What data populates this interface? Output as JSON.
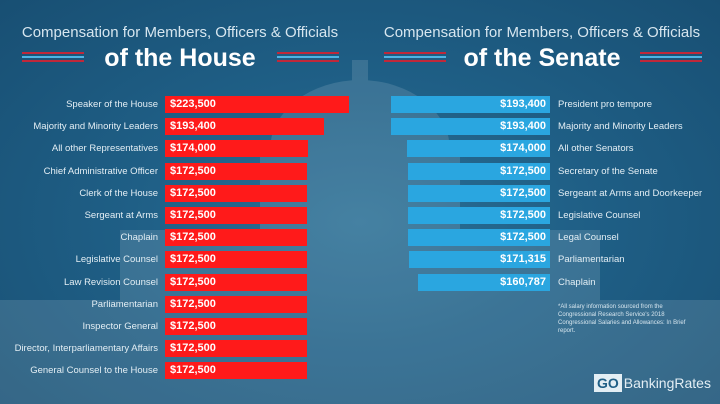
{
  "house": {
    "subtitle": "Compensation for Members, Officers & Officials",
    "title": "of the House"
  },
  "senate": {
    "subtitle": "Compensation for Members, Officers & Officials",
    "title": "of the Senate"
  },
  "footnote": "*All salary information sourced from the Congressional Research Service's 2018 Congressional Salaries and Allowances: In Brief report.",
  "logo": {
    "go": "GO",
    "name": "BankingRates"
  },
  "colors": {
    "house_bar": "#ff1a1a",
    "senate_bar": "#2aa6e0",
    "background": "#1f5f86",
    "stripe_red": "#c0283a",
    "stripe_blue": "#4fb3e3"
  },
  "chart_data": [
    {
      "type": "bar",
      "title": "of the House",
      "subtitle": "Compensation for Members, Officers & Officials",
      "orientation": "horizontal",
      "categories": [
        "Speaker of the House",
        "Majority and Minority Leaders",
        "All other Representatives",
        "Chief Administrative Officer",
        "Clerk of the House",
        "Sergeant at Arms",
        "Chaplain",
        "Legislative Counsel",
        "Law Revision Counsel",
        "Parliamentarian",
        "Inspector General",
        "Director, Interparliamentary Affairs",
        "General Counsel to the House"
      ],
      "values": [
        223500,
        193400,
        174000,
        172500,
        172500,
        172500,
        172500,
        172500,
        172500,
        172500,
        172500,
        172500,
        172500
      ],
      "labels": [
        "$223,500",
        "$193,400",
        "$174,000",
        "$172,500",
        "$172,500",
        "$172,500",
        "$172,500",
        "$172,500",
        "$172,500",
        "$172,500",
        "$172,500",
        "$172,500",
        "$172,500"
      ]
    },
    {
      "type": "bar",
      "title": "of the Senate",
      "subtitle": "Compensation for Members, Officers & Officials",
      "orientation": "horizontal",
      "categories": [
        "President pro tempore",
        "Majority and Minority Leaders",
        "All other Senators",
        "Secretary of the Senate",
        "Sergeant at Arms and Doorkeeper",
        "Legislative Counsel",
        "Legal Counsel",
        "Parliamentarian",
        "Chaplain"
      ],
      "values": [
        193400,
        193400,
        174000,
        172500,
        172500,
        172500,
        172500,
        171315,
        160787
      ],
      "labels": [
        "$193,400",
        "$193,400",
        "$174,000",
        "$172,500",
        "$172,500",
        "$172,500",
        "$172,500",
        "$171,315",
        "$160,787"
      ]
    }
  ]
}
